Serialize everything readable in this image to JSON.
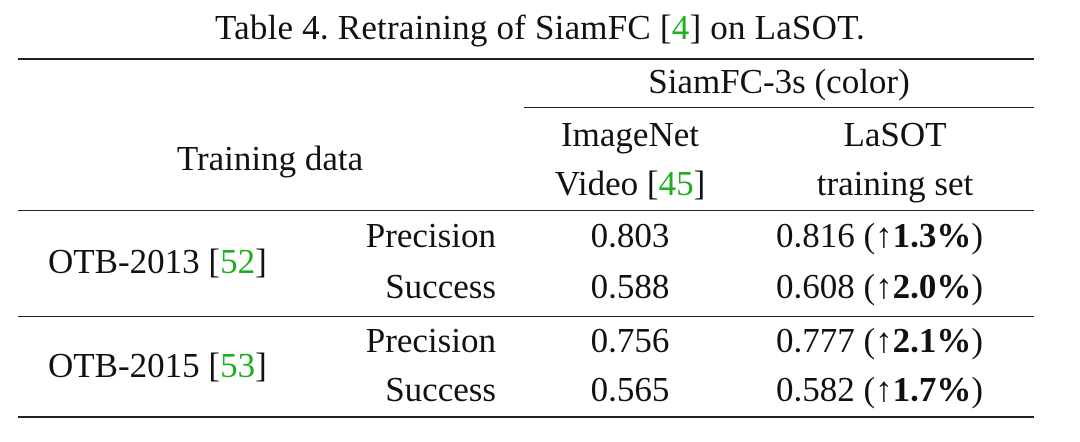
{
  "caption": {
    "prefix": "Table 4. Retraining of SiamFC [",
    "cite": "4",
    "suffix": "] on LaSOT."
  },
  "header": {
    "group_label": "SiamFC-3s (color)",
    "row_label": "Training data",
    "col1_line1": "ImageNet",
    "col1_line2_prefix": "Video [",
    "col1_line2_cite": "45",
    "col1_line2_suffix": "]",
    "col2_line1": "LaSOT",
    "col2_line2": "training set"
  },
  "groups": [
    {
      "name_prefix": "OTB-2013 [",
      "cite": "52",
      "name_suffix": "]",
      "rows": [
        {
          "metric": "Precision",
          "imagenet": "0.803",
          "lasot": "0.816 (↑",
          "gain": "1.3%",
          "close": ")"
        },
        {
          "metric": "Success",
          "imagenet": "0.588",
          "lasot": "0.608 (↑",
          "gain": "2.0%",
          "close": ")"
        }
      ]
    },
    {
      "name_prefix": "OTB-2015 [",
      "cite": "53",
      "name_suffix": "]",
      "rows": [
        {
          "metric": "Precision",
          "imagenet": "0.756",
          "lasot": "0.777 (↑",
          "gain": "2.1%",
          "close": ")"
        },
        {
          "metric": "Success",
          "imagenet": "0.565",
          "lasot": "0.582 (↑",
          "gain": "1.7%",
          "close": ")"
        }
      ]
    }
  ],
  "colors": {
    "citation": "#1fae1f",
    "rules": "#222222"
  }
}
